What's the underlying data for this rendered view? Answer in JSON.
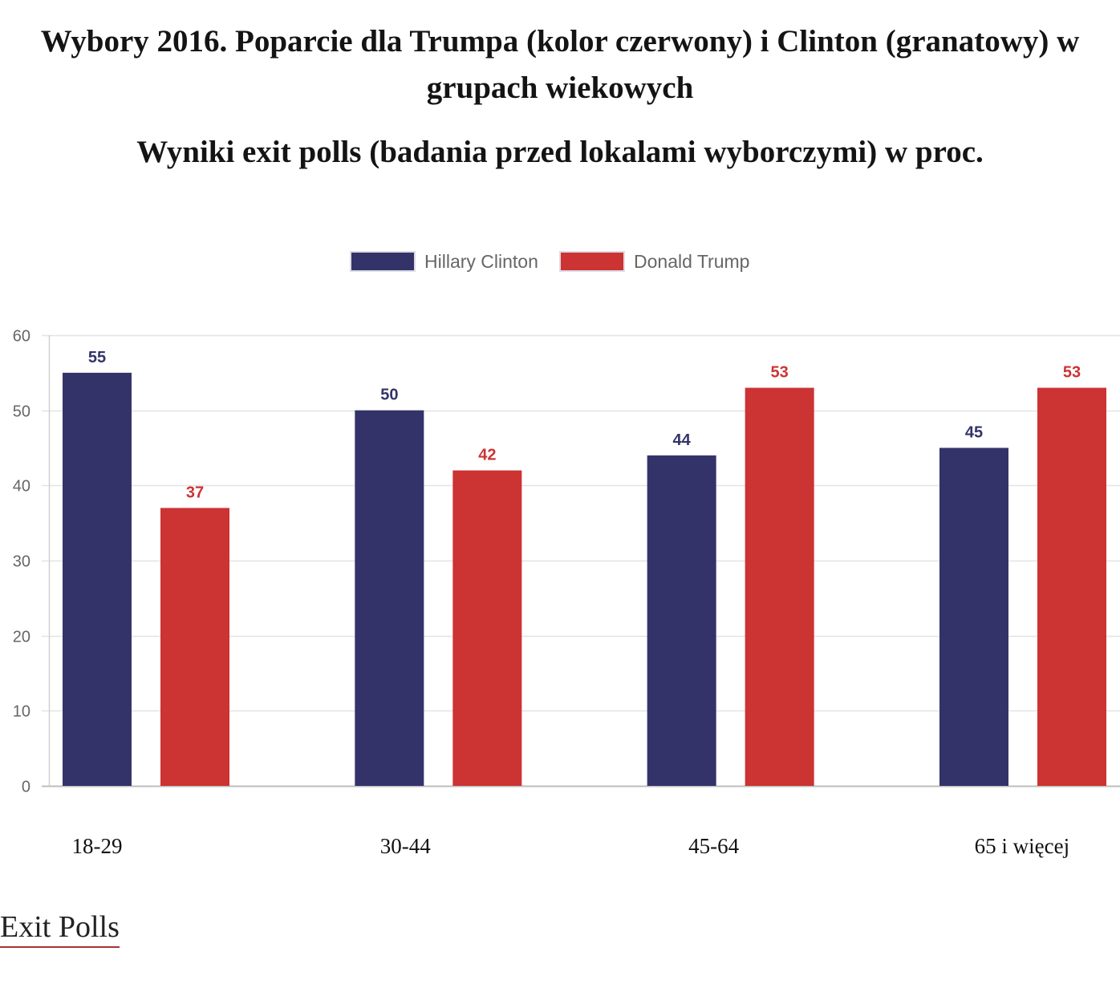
{
  "chart_data": {
    "type": "bar",
    "title": "Wybory 2016. Poparcie dla Trumpa (kolor czerwony) i Clinton (granatowy) w grupach wiekowych",
    "subtitle": "Wyniki exit polls (badania przed lokalami wyborczymi) w proc.",
    "categories": [
      "18-29",
      "30-44",
      "45-64",
      "65 i więcej"
    ],
    "series": [
      {
        "name": "Hillary Clinton",
        "values": [
          55,
          50,
          44,
          45
        ],
        "color": "#33336a"
      },
      {
        "name": "Donald Trump",
        "values": [
          37,
          42,
          53,
          53
        ],
        "color": "#cc3333"
      }
    ],
    "ylim": [
      0,
      60
    ],
    "yticks": [
      0,
      10,
      20,
      30,
      40,
      50,
      60
    ],
    "grid": true,
    "legend": "top-center"
  },
  "source_link": {
    "label": "Exit Polls"
  }
}
